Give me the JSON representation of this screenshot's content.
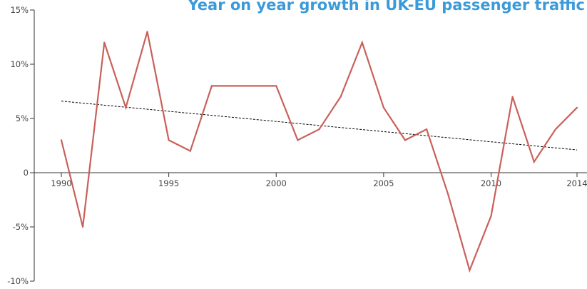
{
  "chart_data": {
    "type": "line",
    "title": "Year on year growth in UK-EU passenger traffic",
    "xlabel": "",
    "ylabel": "",
    "xlim": [
      1990,
      2014
    ],
    "ylim": [
      -10,
      15
    ],
    "x_ticks": [
      1990,
      1995,
      2000,
      2005,
      2010,
      2014
    ],
    "x_tick_labels": [
      "1990",
      "1995",
      "2000",
      "2005",
      "2010",
      "2014"
    ],
    "y_ticks": [
      15,
      10,
      5,
      0,
      -5,
      -10
    ],
    "y_tick_labels": [
      "15%",
      "10%",
      "5%",
      "0",
      "-5%",
      "-10%"
    ],
    "grid": false,
    "legend": "none",
    "series": [
      {
        "color": "#c9605a",
        "x": [
          1990,
          1991,
          1992,
          1993,
          1994,
          1995,
          1996,
          1997,
          1998,
          1999,
          2000,
          2001,
          2002,
          2003,
          2004,
          2005,
          2006,
          2007,
          2008,
          2009,
          2010,
          2011,
          2012,
          2013,
          2014
        ],
        "values": [
          3,
          -5,
          12,
          6,
          13,
          3,
          2,
          8,
          8,
          8,
          8,
          3,
          4,
          7,
          12,
          6,
          3,
          4,
          -2,
          -9,
          -4,
          7,
          1,
          4,
          6
        ]
      }
    ],
    "trendline": {
      "style": "dashed",
      "color": "#000000",
      "x": [
        1990,
        2014
      ],
      "values": [
        6.6,
        2.1
      ]
    },
    "colors": {
      "title": "#3b9ad9",
      "axis": "#333333"
    }
  }
}
